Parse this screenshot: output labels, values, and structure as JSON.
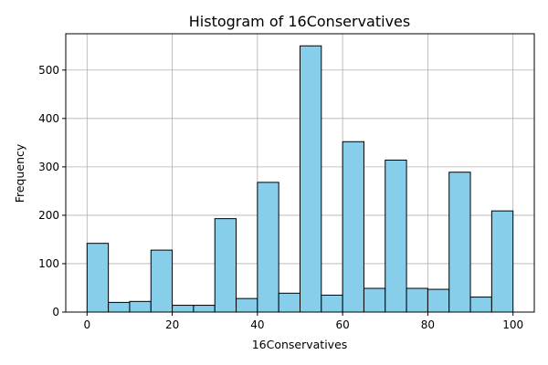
{
  "chart_data": {
    "type": "bar",
    "title": "Histogram of 16Conservatives",
    "xlabel": "16Conservatives",
    "ylabel": "Frequency",
    "xlim": [
      -5,
      105
    ],
    "ylim": [
      0,
      575
    ],
    "xticks": [
      0,
      20,
      40,
      60,
      80,
      100
    ],
    "yticks": [
      0,
      100,
      200,
      300,
      400,
      500
    ],
    "grid": true,
    "bin_edges": [
      0,
      5,
      10,
      15,
      20,
      25,
      30,
      35,
      40,
      45,
      50,
      55,
      60,
      65,
      70,
      75,
      80,
      85,
      90,
      95,
      100
    ],
    "values": [
      142,
      20,
      22,
      128,
      14,
      14,
      193,
      28,
      268,
      39,
      550,
      35,
      352,
      49,
      314,
      49,
      47,
      289,
      31,
      209
    ],
    "colors": {
      "bar_fill": "#87ceeb",
      "bar_edge": "#000000",
      "grid": "#b0b0b0"
    }
  }
}
